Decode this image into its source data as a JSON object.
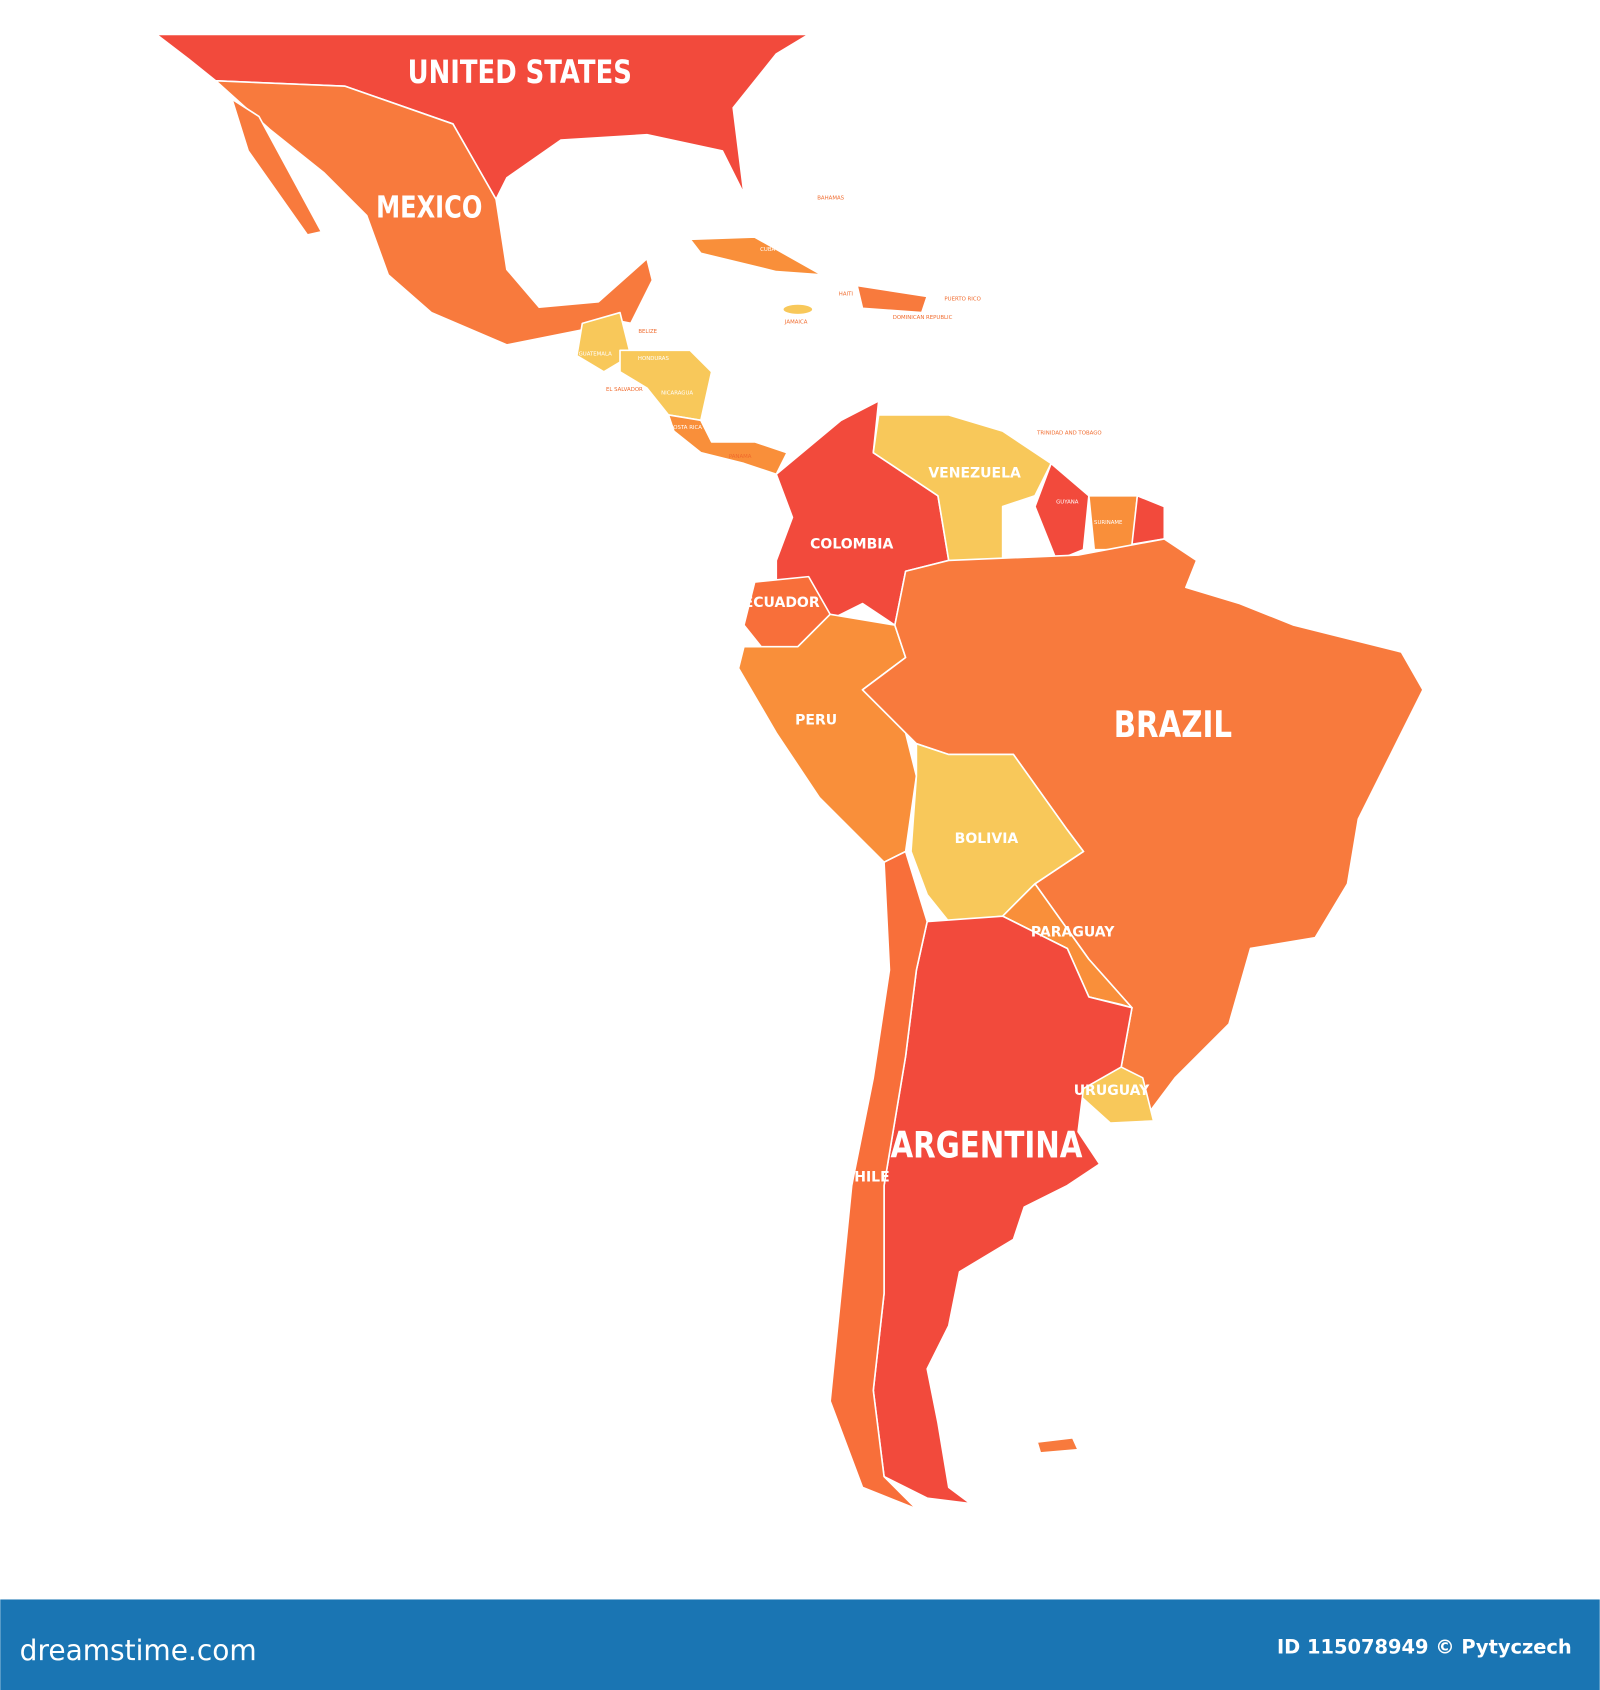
{
  "map": {
    "regions": [
      {
        "label": "UNITED STATES",
        "color": "#f24a3c"
      },
      {
        "label": "MEXICO",
        "color": "#f87a3d"
      },
      {
        "label": "GUATEMALA",
        "color": "#f8c85a"
      },
      {
        "label": "HONDURAS",
        "color": "#f8c85a"
      },
      {
        "label": "COSTA RICA",
        "color": "#f98f3a"
      },
      {
        "label": "CUBA",
        "color": "#f98f3a"
      },
      {
        "label": "DOMINICAN REPUBLIC",
        "color": "#f87a3d"
      },
      {
        "label": "JAMAICA",
        "color": "#f8c85a"
      },
      {
        "label": "COLOMBIA",
        "color": "#f24a3c"
      },
      {
        "label": "VENEZUELA",
        "color": "#f8c85a"
      },
      {
        "label": "GUYANA",
        "color": "#f24a3c"
      },
      {
        "label": "SURINAME",
        "color": "#f98f3a"
      },
      {
        "label": "ECUADOR",
        "color": "#f86f3a"
      },
      {
        "label": "PERU",
        "color": "#f98f3a"
      },
      {
        "label": "BRAZIL",
        "color": "#f87a3d"
      },
      {
        "label": "BOLIVIA",
        "color": "#f8c85a"
      },
      {
        "label": "PARAGUAY",
        "color": "#f98f3a"
      },
      {
        "label": "URUGUAY",
        "color": "#f8c85a"
      },
      {
        "label": "ARGENTINA",
        "color": "#f24a3c"
      },
      {
        "label": "CHILE",
        "color": "#f86f3a"
      }
    ],
    "small_labels": [
      "BAHAMAS",
      "HAITI",
      "BELIZE",
      "EL SALVADOR",
      "NICARAGUA",
      "PANAMA",
      "PUERTO RICO",
      "TRINIDAD AND TOBAGO"
    ]
  },
  "footer": {
    "site": "dreamstime.com",
    "credit": "ID 115078949 © Pytyczech"
  }
}
